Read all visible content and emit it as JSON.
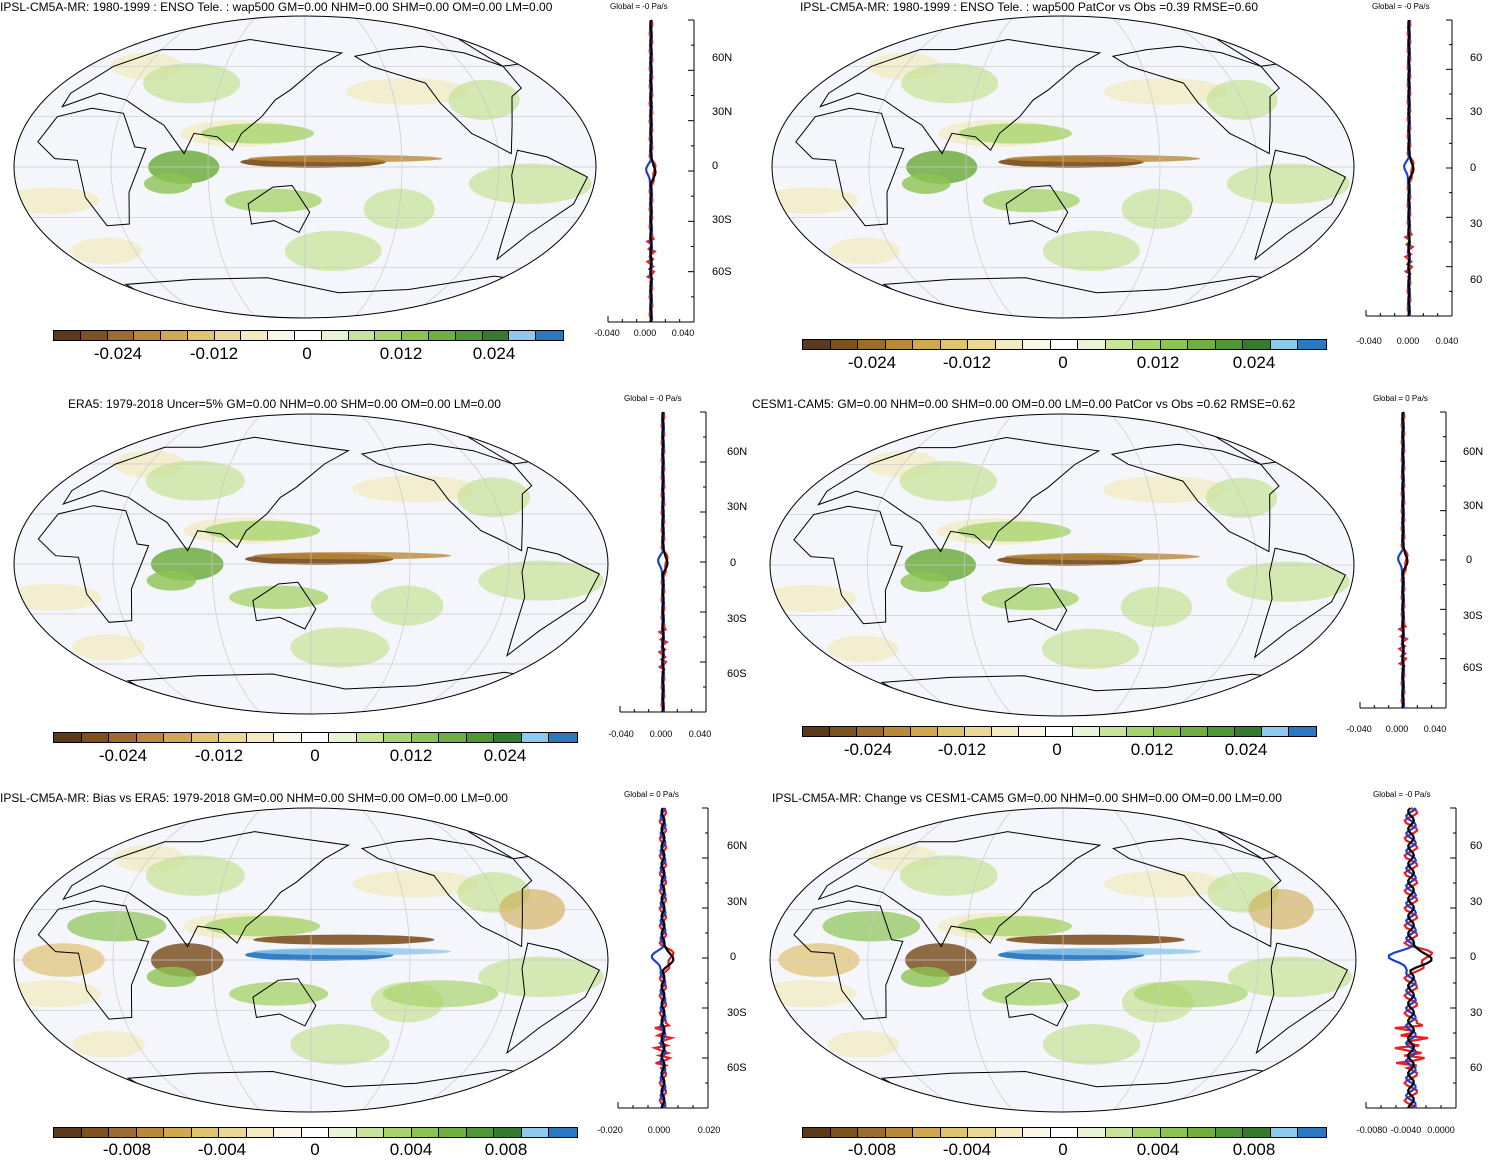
{
  "colors": {
    "palette": [
      "#5a3a1a",
      "#7d5222",
      "#9b6b2f",
      "#b9893a",
      "#cfa84f",
      "#dfc36e",
      "#ebd896",
      "#f4ebc2",
      "#fbf7e8",
      "#ffffff",
      "#e9f3d6",
      "#c8e39a",
      "#a8d46e",
      "#8cc452",
      "#6fae3f",
      "#4f9636",
      "#357a2e",
      "#8ec9ee",
      "#2a77c2"
    ],
    "ocean": "#f4f6fb",
    "land_line": "#000000",
    "obs_line": "#000000",
    "model_line": "#e82020",
    "ref_line": "#1f3fd0"
  },
  "panels": [
    {
      "title": "IPSL-CM5A-MR: 1980-1999 : ENSO Tele. : wap500 GM=0.00 NHM=0.00 SHM=0.00 OM=0.00 LM=0.00",
      "global": "Global = -0 Pa/s",
      "cb_labels": [
        "-0.024",
        "-0.012",
        "0",
        "0.012",
        "0.024"
      ],
      "lat_labels": [
        "60N",
        "30N",
        "0",
        "30S",
        "60S"
      ],
      "x_labels": [
        "-0.040",
        "0.000",
        "0.040"
      ]
    },
    {
      "title": "IPSL-CM5A-MR: 1980-1999 : ENSO Tele. : wap500 PatCor vs Obs =0.39 RMSE=0.60",
      "global": "Global = -0 Pa/s",
      "cb_labels": [
        "-0.024",
        "-0.012",
        "0",
        "0.012",
        "0.024"
      ],
      "lat_labels": [
        "60",
        "30",
        "0",
        "30",
        "60"
      ],
      "x_labels": [
        "-0.040",
        "0.000",
        "0.040"
      ]
    },
    {
      "title": "ERA5: 1979-2018 Uncer=5% GM=0.00 NHM=0.00 SHM=0.00 OM=0.00 LM=0.00",
      "global": "Global = -0 Pa/s",
      "cb_labels": [
        "-0.024",
        "-0.012",
        "0",
        "0.012",
        "0.024"
      ],
      "lat_labels": [
        "60N",
        "30N",
        "0",
        "30S",
        "60S"
      ],
      "x_labels": [
        "-0.040",
        "0.000",
        "0.040"
      ]
    },
    {
      "title": "CESM1-CAM5: GM=0.00 NHM=0.00 SHM=0.00 OM=0.00 LM=0.00 PatCor vs Obs =0.62 RMSE=0.62",
      "global": "Global = 0 Pa/s",
      "cb_labels": [
        "-0.024",
        "-0.012",
        "0",
        "0.012",
        "0.024"
      ],
      "lat_labels": [
        "60N",
        "30N",
        "0",
        "30S",
        "60S"
      ],
      "x_labels": [
        "-0.040",
        "0.000",
        "0.040"
      ]
    },
    {
      "title": "IPSL-CM5A-MR: Bias vs ERA5: 1979-2018 GM=0.00 NHM=0.00 SHM=0.00 OM=0.00 LM=0.00",
      "global": "Global = 0 Pa/s",
      "cb_labels": [
        "-0.008",
        "-0.004",
        "0",
        "0.004",
        "0.008"
      ],
      "lat_labels": [
        "60N",
        "30N",
        "0",
        "30S",
        "60S"
      ],
      "x_labels": [
        "-0.020",
        "0.000",
        "0.020"
      ]
    },
    {
      "title": "IPSL-CM5A-MR: Change vs CESM1-CAM5 GM=0.00 NHM=0.00 SHM=0.00 OM=0.00 LM=0.00",
      "global": "Global = -0 Pa/s",
      "cb_labels": [
        "-0.008",
        "-0.004",
        "0",
        "0.004",
        "0.008"
      ],
      "lat_labels": [
        "60",
        "30",
        "0",
        "30",
        "60"
      ],
      "x_labels": [
        "-0.0080",
        "-0.0040",
        "0.0000"
      ]
    }
  ]
}
